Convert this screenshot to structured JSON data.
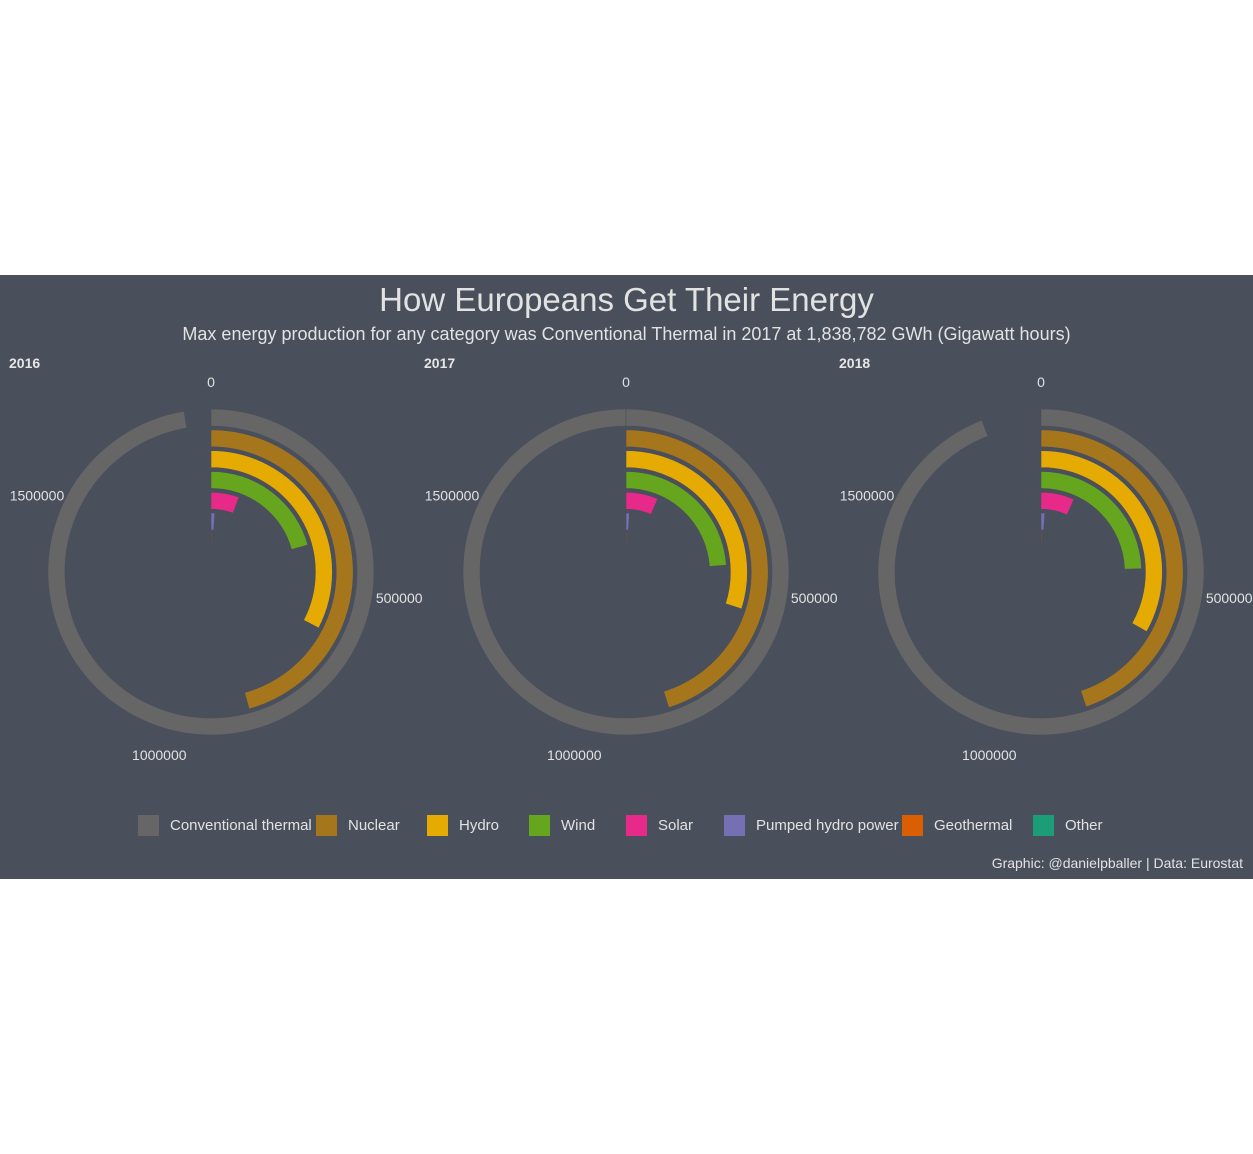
{
  "chart_data": {
    "type": "bar",
    "title": "How Europeans Get Their Energy",
    "subtitle": "Max energy production for any category was Conventional Thermal in 2017 at 1,838,782 GWh (Gigawatt hours)",
    "caption": "Graphic: @danielpballer | Data: Eurostat",
    "coord": "polar",
    "theta_max": 1838782,
    "theta_ticks": [
      {
        "value": 0,
        "label": "0"
      },
      {
        "value": 500000,
        "label": "500000"
      },
      {
        "value": 1000000,
        "label": "1000000"
      },
      {
        "value": 1500000,
        "label": "1500000"
      }
    ],
    "categories": [
      "Conventional thermal",
      "Nuclear",
      "Hydro",
      "Wind",
      "Solar",
      "Pumped hydro power",
      "Geothermal",
      "Other"
    ],
    "colors": [
      "#666666",
      "#a6761d",
      "#e6ab02",
      "#66a61e",
      "#e7298a",
      "#7570b3",
      "#d95f02",
      "#1b9e77"
    ],
    "legend_position": "bottom",
    "facets": [
      {
        "label": "2016",
        "values": [
          1790000,
          840000,
          600000,
          380000,
          105000,
          19000,
          6600,
          1000
        ]
      },
      {
        "label": "2017",
        "values": [
          1838782,
          830000,
          550000,
          440000,
          120000,
          17000,
          6600,
          600
        ]
      },
      {
        "label": "2018",
        "values": [
          1730000,
          825000,
          610000,
          450000,
          125000,
          19000,
          6700,
          600
        ]
      }
    ]
  }
}
